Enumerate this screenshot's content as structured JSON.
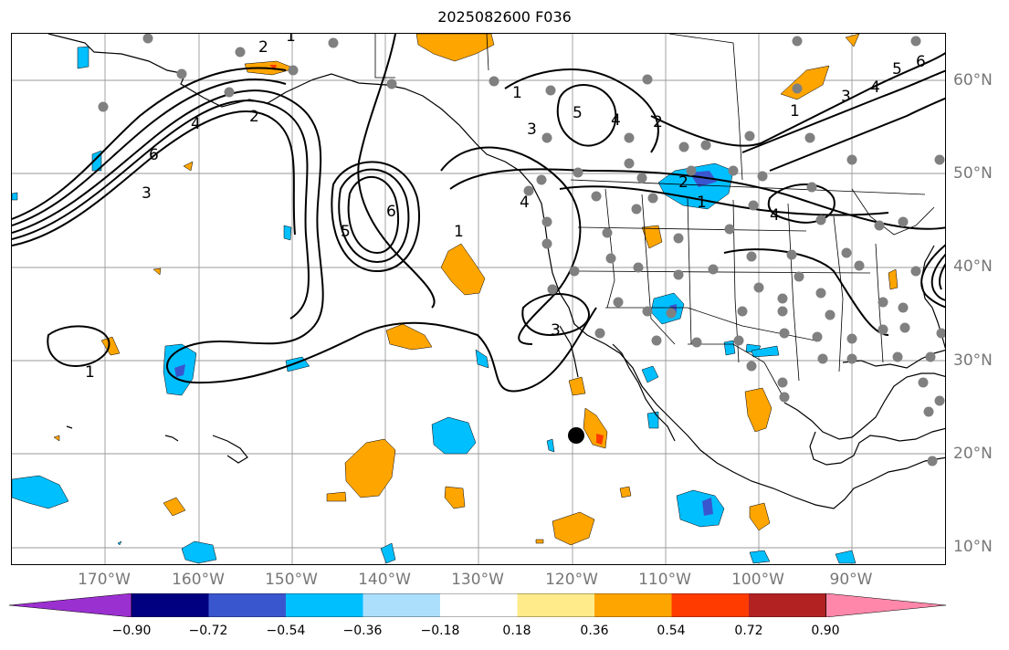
{
  "title": "2025082600 F036",
  "lon_labels": [
    "170°W",
    "160°W",
    "150°W",
    "140°W",
    "130°W",
    "120°W",
    "110°W",
    "100°W",
    "90°W"
  ],
  "lat_labels": [
    "60°N",
    "50°N",
    "40°N",
    "30°N",
    "20°N",
    "10°N"
  ],
  "contour_labels": [
    "1",
    "2",
    "3",
    "4",
    "5",
    "6"
  ],
  "colorbar": {
    "ticks": [
      "−0.90",
      "−0.72",
      "−0.54",
      "−0.36",
      "−0.18",
      "0.18",
      "0.36",
      "0.54",
      "0.72",
      "0.90"
    ],
    "colors": [
      "#9b30d0",
      "#000080",
      "#3a56cf",
      "#00bfff",
      "#acdffc",
      "#ffffff",
      "#ffeb8a",
      "#ffa500",
      "#ff3b00",
      "#b22222",
      "#ff88aa"
    ]
  },
  "colors": {
    "positive_anomaly": "#ffa500",
    "negative_anomaly": "#00bfff",
    "strong_negative": "#3a56cf",
    "station": "#808080",
    "gridline": "#999999"
  },
  "markers": {
    "storm_center": "black-dot"
  }
}
